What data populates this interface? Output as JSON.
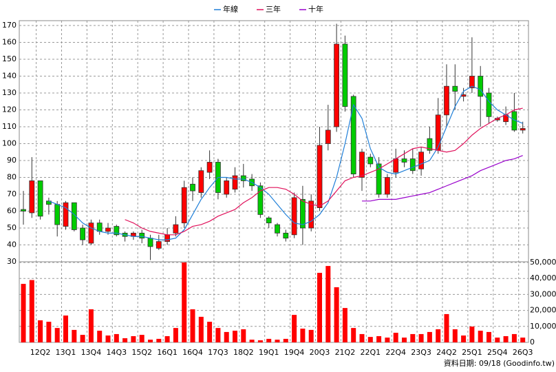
{
  "chart_data": [
    {
      "type": "candlestick",
      "categories": [
        null,
        null,
        "12Q2",
        null,
        null,
        "13Q1",
        null,
        null,
        "13Q4",
        null,
        null,
        "14Q3",
        null,
        null,
        "15Q2",
        null,
        null,
        "16Q1",
        null,
        null,
        "16Q4",
        null,
        null,
        "17Q3",
        null,
        null,
        "18Q2",
        null,
        null,
        "19Q1",
        null,
        null,
        "19Q4",
        null,
        null,
        "20Q3",
        null,
        null,
        "21Q2",
        null,
        null,
        "22Q1",
        null,
        null,
        "22Q4",
        null,
        null,
        "23Q3",
        null,
        null,
        "24Q2",
        null,
        null,
        "25Q1",
        null,
        null,
        "25Q4",
        null,
        null,
        "26Q3"
      ],
      "open": [
        61,
        59,
        78,
        66,
        64,
        51,
        65,
        50,
        41,
        53,
        48,
        51,
        47,
        45,
        47,
        44,
        38,
        42,
        47,
        53,
        76,
        71,
        83,
        89,
        70,
        73,
        81,
        79,
        75,
        56,
        52,
        47,
        46,
        67,
        50,
        62,
        100,
        110,
        159,
        128,
        80,
        92,
        88,
        70,
        83,
        91,
        91,
        85,
        103,
        96,
        117,
        134,
        128,
        133,
        140,
        130,
        114,
        113,
        119,
        108
      ],
      "high": [
        72,
        92,
        78,
        68,
        66,
        66,
        65,
        52,
        55,
        55,
        53,
        52,
        48,
        48,
        49,
        46,
        46,
        50,
        57,
        78,
        80,
        86,
        96,
        91,
        80,
        86,
        88,
        82,
        77,
        57,
        53,
        49,
        71,
        75,
        70,
        110,
        123,
        171,
        164,
        129,
        97,
        94,
        92,
        82,
        97,
        96,
        97,
        98,
        110,
        127,
        147,
        147,
        133,
        163,
        146,
        133,
        116,
        122,
        130,
        113
      ],
      "low": [
        52,
        56,
        55,
        58,
        45,
        49,
        48,
        40,
        40,
        46,
        46,
        45,
        42,
        43,
        41,
        31,
        37,
        40,
        45,
        50,
        66,
        68,
        79,
        67,
        68,
        71,
        74,
        72,
        56,
        50,
        45,
        42,
        44,
        40,
        48,
        60,
        96,
        107,
        119,
        80,
        72,
        86,
        68,
        68,
        80,
        86,
        82,
        81,
        94,
        94,
        110,
        120,
        125,
        130,
        110,
        112,
        113,
        111,
        107,
        106
      ],
      "close": [
        60,
        78,
        57,
        64,
        52,
        65,
        49,
        43,
        53,
        48,
        50,
        46,
        45,
        47,
        44,
        39,
        42,
        46,
        52,
        74,
        72,
        84,
        89,
        71,
        78,
        81,
        78,
        75,
        58,
        53,
        47,
        44,
        68,
        50,
        66,
        99,
        108,
        159,
        122,
        82,
        95,
        88,
        70,
        80,
        91,
        89,
        84,
        95,
        96,
        117,
        134,
        131,
        129,
        140,
        128,
        116,
        115,
        117,
        108,
        109
      ],
      "up_color": "#ff0000",
      "down_color": "#00cc00",
      "series": [
        {
          "name": "年線",
          "color": "#1f7fd8",
          "values": [
            null,
            null,
            null,
            66,
            64,
            62,
            58,
            53,
            50,
            48,
            47,
            47,
            46,
            45,
            45,
            44,
            43,
            43,
            44,
            49,
            58,
            67,
            74,
            80,
            80,
            79,
            79,
            77,
            74,
            70,
            64,
            58,
            53,
            52,
            54,
            58,
            65,
            80,
            100,
            123,
            115,
            97,
            86,
            83,
            82,
            84,
            86,
            88,
            90,
            98,
            110,
            122,
            131,
            134,
            132,
            125,
            120,
            117,
            114,
            112
          ]
        },
        {
          "name": "三年",
          "color": "#e0105a",
          "values": [
            null,
            null,
            null,
            null,
            null,
            null,
            null,
            null,
            null,
            null,
            null,
            null,
            55,
            53,
            50,
            48,
            47,
            46,
            46,
            48,
            51,
            52,
            54,
            57,
            59,
            61,
            65,
            68,
            72,
            74,
            74,
            73,
            70,
            66,
            64,
            63,
            66,
            72,
            78,
            80,
            81,
            83,
            85,
            88,
            91,
            94,
            97,
            98,
            97,
            96,
            95,
            96,
            100,
            105,
            109,
            112,
            115,
            117,
            120,
            121
          ]
        },
        {
          "name": "十年",
          "color": "#9900cc",
          "values": [
            null,
            null,
            null,
            null,
            null,
            null,
            null,
            null,
            null,
            null,
            null,
            null,
            null,
            null,
            null,
            null,
            null,
            null,
            null,
            null,
            null,
            null,
            null,
            null,
            null,
            null,
            null,
            null,
            null,
            null,
            null,
            null,
            null,
            null,
            null,
            null,
            null,
            null,
            null,
            null,
            66,
            66,
            67,
            67,
            67,
            68,
            69,
            70,
            71,
            73,
            75,
            77,
            79,
            81,
            84,
            86,
            88,
            90,
            91,
            93
          ]
        }
      ],
      "ylim": [
        30,
        170
      ],
      "yticks": [
        30,
        40,
        50,
        60,
        70,
        80,
        90,
        100,
        110,
        120,
        130,
        140,
        150,
        160,
        170
      ],
      "grid": true,
      "legend": "top",
      "source": "資料日期: 09/18 (Goodinfo.tw)"
    },
    {
      "type": "bar",
      "color": "#ff0000",
      "values": [
        36600,
        39000,
        13800,
        12900,
        9000,
        16800,
        7800,
        4700,
        20700,
        7300,
        4300,
        5200,
        2600,
        3900,
        4700,
        1700,
        2200,
        3900,
        9000,
        50000,
        20700,
        16000,
        12900,
        9000,
        6500,
        7300,
        8200,
        1700,
        1300,
        2200,
        1700,
        2200,
        17200,
        8600,
        7800,
        43500,
        47800,
        34500,
        21500,
        9000,
        5200,
        3400,
        3900,
        3000,
        6000,
        3000,
        5200,
        5200,
        6500,
        8200,
        17700,
        8200,
        4300,
        9900,
        7300,
        6500,
        3000,
        3900,
        5200,
        3000
      ],
      "ylim": [
        0,
        50000
      ],
      "yticks": [
        0,
        {
          "value": 10000,
          "label": "10,000"
        },
        {
          "value": 20000,
          "label": "20,000"
        },
        {
          "value": 30000,
          "label": "30,000"
        },
        {
          "value": 40000,
          "label": "40,000"
        },
        {
          "value": 50000,
          "label": "50,000"
        }
      ],
      "grid": true
    }
  ]
}
